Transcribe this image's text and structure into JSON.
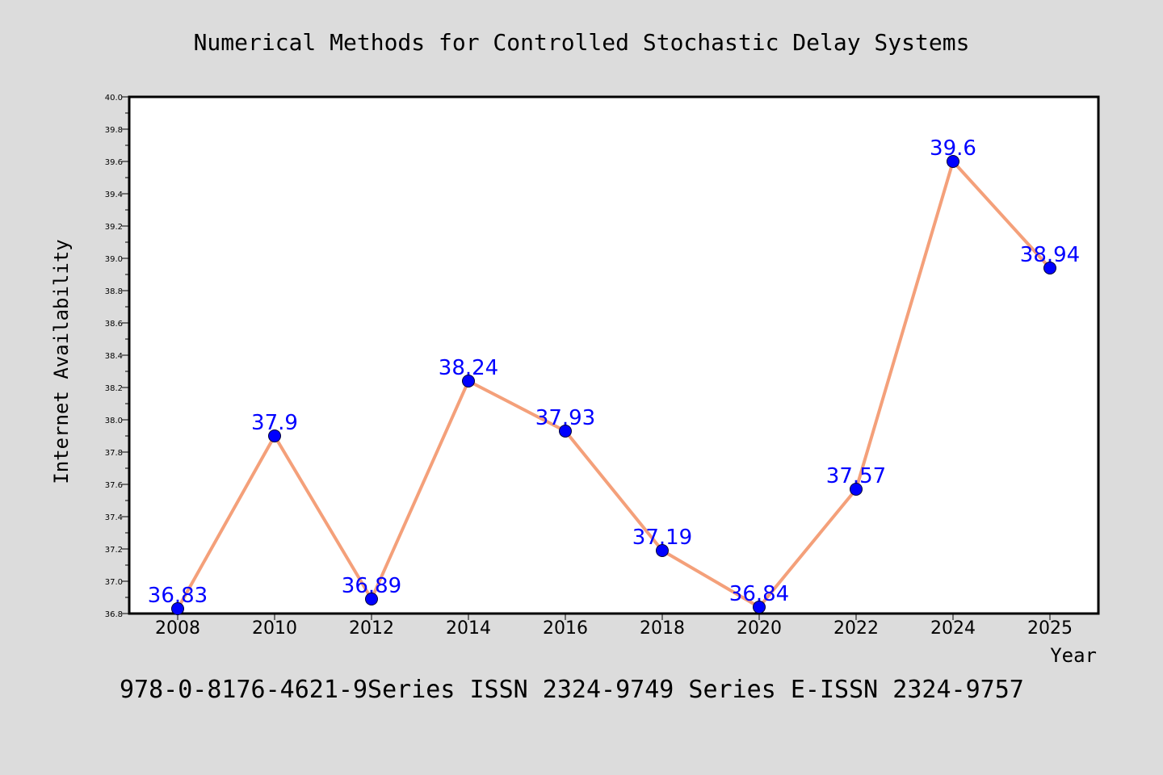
{
  "chart_data": {
    "type": "line",
    "title": "Numerical Methods for Controlled Stochastic Delay Systems",
    "xlabel": "Year",
    "ylabel": "Internet Availability",
    "footer": "978-0-8176-4621-9Series ISSN 2324-9749 Series E-ISSN 2324-9757",
    "x": [
      "2008",
      "2010",
      "2012",
      "2014",
      "2016",
      "2018",
      "2020",
      "2022",
      "2024",
      "2025"
    ],
    "series": [
      {
        "values": [
          36.83,
          37.9,
          36.89,
          38.24,
          37.93,
          37.19,
          36.84,
          37.57,
          39.6,
          38.94
        ],
        "labels": [
          "36.83",
          "37.9",
          "36.89",
          "38.24",
          "37.93",
          "37.19",
          "36.84",
          "37.57",
          "39.6",
          "38.94"
        ]
      }
    ],
    "ylim": [
      36.8,
      40.0
    ],
    "yticks": [
      "36.8",
      "37.0",
      "37.2",
      "37.4",
      "37.6",
      "37.8",
      "38.0",
      "38.2",
      "38.4",
      "38.6",
      "38.8",
      "39.0",
      "39.2",
      "39.4",
      "39.6",
      "39.8",
      "40.0"
    ],
    "grid": false,
    "legend": "none",
    "colors": {
      "background": "#dcdcdc",
      "plot_background": "#ffffff",
      "line": "#f4a07a",
      "marker": "#0000ff",
      "data_label": "#0000ff"
    }
  }
}
